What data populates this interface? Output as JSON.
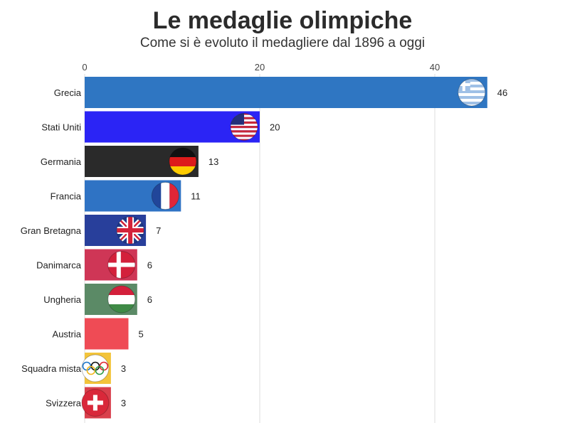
{
  "chart_data": {
    "type": "bar",
    "orientation": "horizontal",
    "title": "Le medaglie olimpiche",
    "subtitle": "Come si è evoluto il medagliere dal 1896 a oggi",
    "xlim": [
      0,
      46
    ],
    "xticks": [
      0,
      20,
      40
    ],
    "grid": true,
    "categories": [
      "Grecia",
      "Stati Uniti",
      "Germania",
      "Francia",
      "Gran Bretagna",
      "Danimarca",
      "Ungheria",
      "Austria",
      "Squadra mista",
      "Svizzera"
    ],
    "values": [
      46,
      20,
      13,
      11,
      7,
      6,
      6,
      5,
      3,
      3
    ],
    "colors": [
      "#2f76c2",
      "#2b24f5",
      "#2a2a2a",
      "#2f73c4",
      "#283f9b",
      "#cf3656",
      "#5b8a66",
      "#ef4b55",
      "#f3c43a",
      "#d9404c"
    ],
    "flags": [
      "greece",
      "usa",
      "germany",
      "france",
      "uk",
      "denmark",
      "hungary",
      "none",
      "olympic",
      "switzerland"
    ]
  }
}
